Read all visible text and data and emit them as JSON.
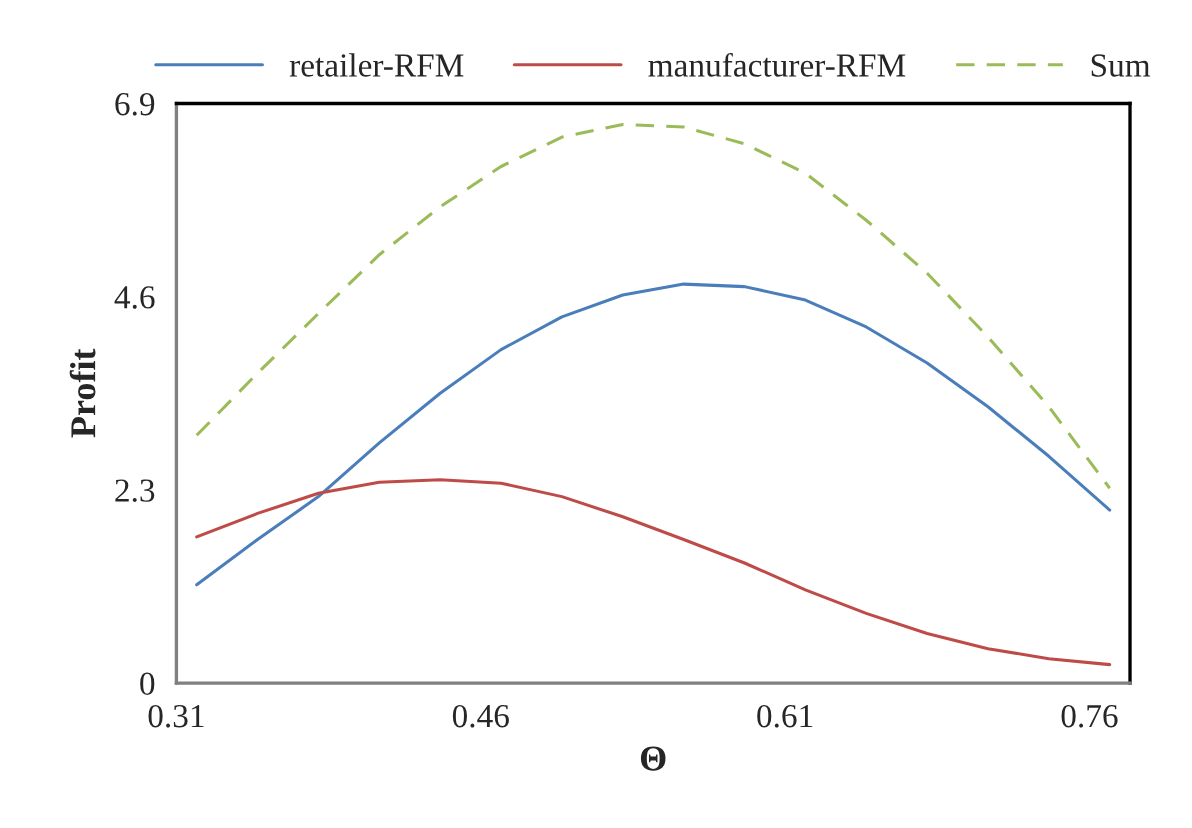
{
  "chart_data": {
    "type": "line",
    "xlabel": "Θ",
    "ylabel": "Profit",
    "x": [
      0.32,
      0.35,
      0.38,
      0.41,
      0.44,
      0.47,
      0.5,
      0.53,
      0.56,
      0.59,
      0.62,
      0.65,
      0.68,
      0.71,
      0.74,
      0.77
    ],
    "series": [
      {
        "name": "retailer-RFM",
        "color": "#4a7ebb",
        "line_style": "solid",
        "values": [
          1.17,
          1.71,
          2.22,
          2.86,
          3.45,
          3.97,
          4.36,
          4.62,
          4.75,
          4.72,
          4.56,
          4.24,
          3.81,
          3.29,
          2.7,
          2.06
        ]
      },
      {
        "name": "manufacturer-RFM",
        "color": "#be4b48",
        "line_style": "solid",
        "values": [
          1.74,
          2.02,
          2.26,
          2.39,
          2.42,
          2.38,
          2.22,
          1.98,
          1.71,
          1.43,
          1.11,
          0.83,
          0.59,
          0.41,
          0.29,
          0.22
        ]
      },
      {
        "name": "Sum",
        "color": "#9bbb59",
        "line_style": "dashed",
        "values": [
          2.95,
          3.69,
          4.4,
          5.1,
          5.67,
          6.15,
          6.5,
          6.65,
          6.62,
          6.42,
          6.07,
          5.51,
          4.88,
          4.12,
          3.29,
          2.32
        ]
      }
    ],
    "xlim": [
      0.31,
      0.78
    ],
    "xticks": [
      0.31,
      0.46,
      0.61,
      0.76
    ],
    "ylim": [
      0,
      6.9
    ],
    "yticks": [
      0,
      2.3,
      4.6,
      6.9
    ],
    "grid": false,
    "legend": "top",
    "marker": "none"
  }
}
